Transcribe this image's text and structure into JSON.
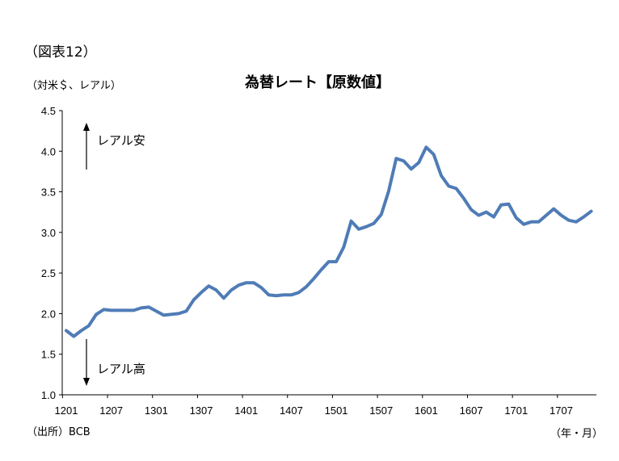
{
  "figure_label": "（図表12）",
  "unit_label": "（対米＄、レアル）",
  "source": "（出所）BCB",
  "x_unit": "（年・月）",
  "colors": {
    "line": "#4F7CB6",
    "axis": "#000000"
  },
  "annotations": {
    "up": "レアル安",
    "down": "レアル高"
  },
  "chart_data": {
    "type": "line",
    "title": "為替レート【原数値】",
    "ylim": [
      1.0,
      4.5
    ],
    "yticks": [
      "1.0",
      "1.5",
      "2.0",
      "2.5",
      "3.0",
      "3.5",
      "4.0",
      "4.5"
    ],
    "xtick_labels": [
      "1201",
      "1207",
      "1301",
      "1307",
      "1401",
      "1407",
      "1501",
      "1507",
      "1601",
      "1607",
      "1701",
      "1707"
    ],
    "grid": false,
    "values": [
      1.79,
      1.72,
      1.79,
      1.85,
      1.99,
      2.05,
      2.04,
      2.04,
      2.04,
      2.04,
      2.07,
      2.08,
      2.03,
      1.98,
      1.99,
      2.0,
      2.03,
      2.17,
      2.26,
      2.34,
      2.29,
      2.19,
      2.29,
      2.35,
      2.38,
      2.38,
      2.32,
      2.23,
      2.22,
      2.23,
      2.23,
      2.26,
      2.33,
      2.43,
      2.54,
      2.64,
      2.64,
      2.82,
      3.14,
      3.04,
      3.07,
      3.11,
      3.22,
      3.51,
      3.91,
      3.88,
      3.78,
      3.86,
      4.05,
      3.96,
      3.7,
      3.57,
      3.54,
      3.42,
      3.28,
      3.21,
      3.25,
      3.19,
      3.34,
      3.35,
      3.18,
      3.1,
      3.13,
      3.13,
      3.21,
      3.29,
      3.21,
      3.15,
      3.13,
      3.19,
      3.26
    ]
  }
}
